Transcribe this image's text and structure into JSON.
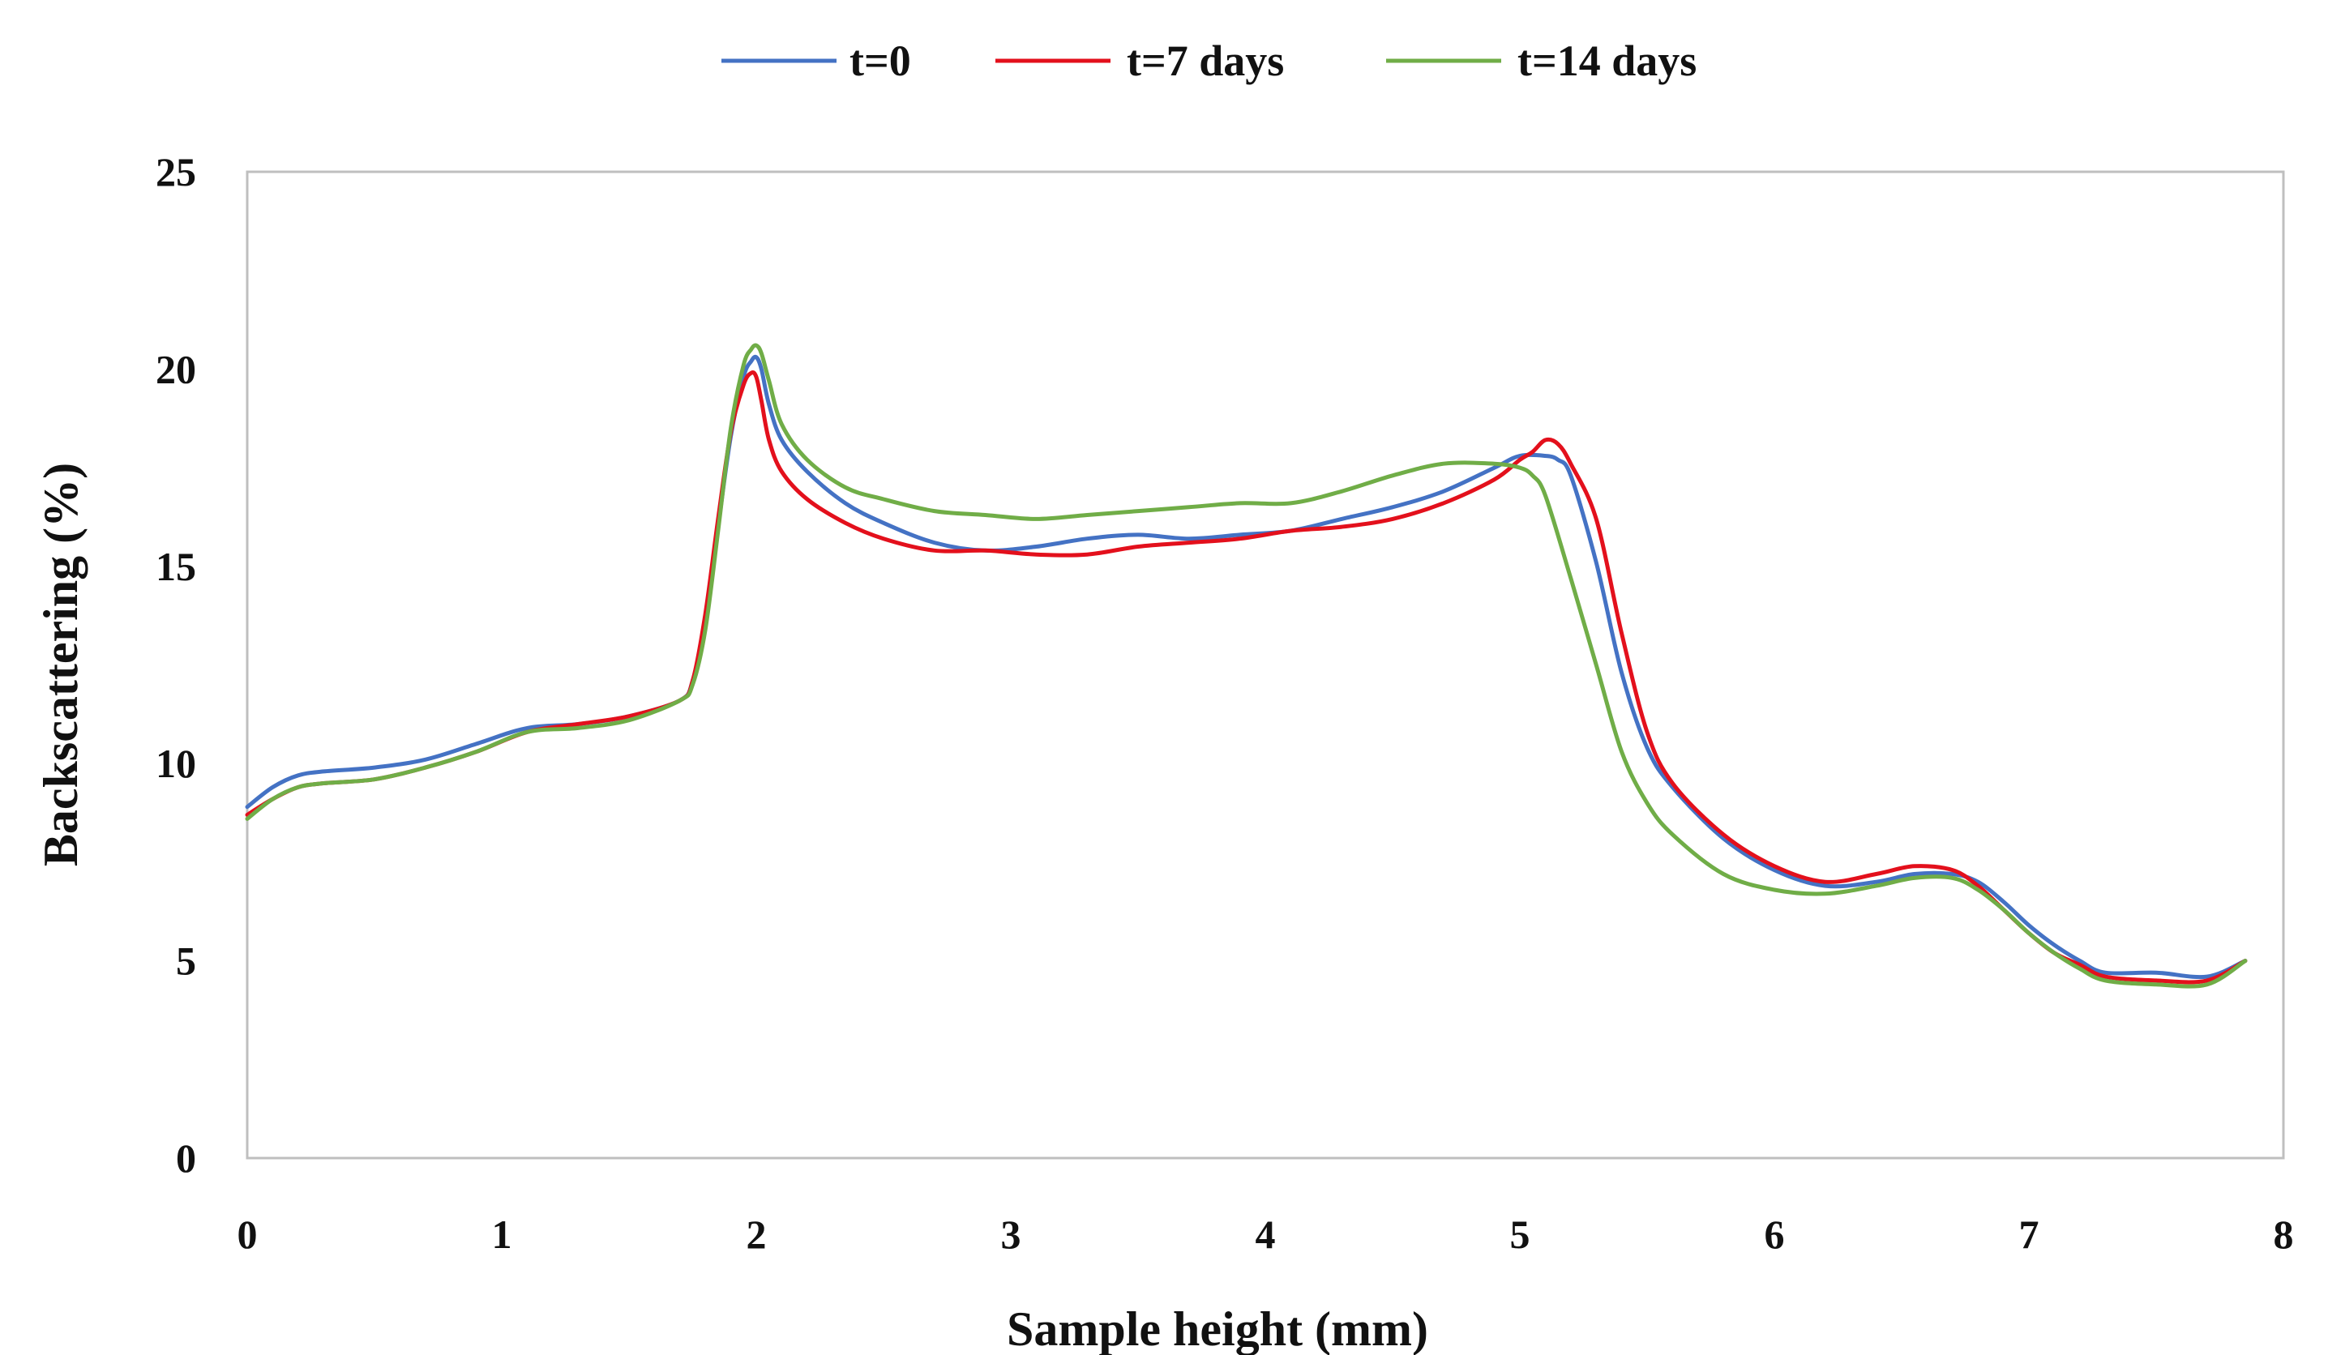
{
  "chart_data": {
    "type": "line",
    "title": "",
    "xlabel": "Sample height (mm)",
    "ylabel": "Backscattering (%)",
    "xlim": [
      0,
      8
    ],
    "ylim": [
      0,
      25
    ],
    "xticks": [
      "0",
      "1",
      "2",
      "3",
      "4",
      "5",
      "6",
      "7",
      "8"
    ],
    "yticks": [
      "0",
      "5",
      "10",
      "15",
      "20",
      "25"
    ],
    "grid": false,
    "legend_position": "top-center",
    "series": [
      {
        "name": "t=0",
        "color": "#4472C4",
        "x": [
          0,
          0.1,
          0.2,
          0.3,
          0.5,
          0.7,
          0.9,
          1.1,
          1.3,
          1.5,
          1.7,
          1.75,
          1.8,
          1.85,
          1.9,
          1.95,
          1.98,
          2.0,
          2.02,
          2.05,
          2.1,
          2.2,
          2.35,
          2.5,
          2.7,
          2.9,
          3.1,
          3.3,
          3.5,
          3.7,
          3.9,
          4.1,
          4.3,
          4.5,
          4.7,
          4.9,
          5.0,
          5.1,
          5.15,
          5.2,
          5.3,
          5.4,
          5.5,
          5.6,
          5.8,
          6.0,
          6.2,
          6.4,
          6.55,
          6.7,
          6.8,
          6.9,
          7.0,
          7.1,
          7.2,
          7.3,
          7.5,
          7.7,
          7.85
        ],
        "y": [
          8.9,
          9.4,
          9.7,
          9.8,
          9.9,
          10.1,
          10.5,
          10.9,
          11.0,
          11.2,
          11.6,
          12.1,
          13.6,
          16.0,
          18.3,
          19.8,
          20.2,
          20.3,
          20.0,
          19.1,
          18.2,
          17.4,
          16.6,
          16.1,
          15.6,
          15.4,
          15.5,
          15.7,
          15.8,
          15.7,
          15.8,
          15.9,
          16.2,
          16.5,
          16.9,
          17.5,
          17.8,
          17.8,
          17.7,
          17.3,
          15.1,
          12.3,
          10.4,
          9.4,
          8.1,
          7.3,
          6.9,
          7.0,
          7.2,
          7.2,
          7.0,
          6.5,
          5.9,
          5.4,
          5.0,
          4.7,
          4.7,
          4.6,
          5.0
        ]
      },
      {
        "name": "t=7 days",
        "color": "#E3101C",
        "x": [
          0,
          0.1,
          0.2,
          0.3,
          0.5,
          0.7,
          0.9,
          1.1,
          1.3,
          1.5,
          1.7,
          1.75,
          1.8,
          1.85,
          1.9,
          1.95,
          1.98,
          2.0,
          2.02,
          2.05,
          2.1,
          2.2,
          2.35,
          2.5,
          2.7,
          2.9,
          3.1,
          3.3,
          3.5,
          3.7,
          3.9,
          4.1,
          4.3,
          4.5,
          4.7,
          4.9,
          5.0,
          5.05,
          5.1,
          5.15,
          5.2,
          5.3,
          5.4,
          5.5,
          5.6,
          5.8,
          6.0,
          6.2,
          6.4,
          6.55,
          6.7,
          6.8,
          6.9,
          7.0,
          7.1,
          7.2,
          7.3,
          7.5,
          7.7,
          7.85
        ],
        "y": [
          8.7,
          9.1,
          9.4,
          9.5,
          9.6,
          9.9,
          10.3,
          10.8,
          11.0,
          11.2,
          11.6,
          12.1,
          13.8,
          16.2,
          18.4,
          19.6,
          19.9,
          19.8,
          19.2,
          18.2,
          17.4,
          16.7,
          16.1,
          15.7,
          15.4,
          15.4,
          15.3,
          15.3,
          15.5,
          15.6,
          15.7,
          15.9,
          16.0,
          16.2,
          16.6,
          17.2,
          17.7,
          17.9,
          18.2,
          18.1,
          17.6,
          16.2,
          13.3,
          10.8,
          9.5,
          8.2,
          7.4,
          7.0,
          7.2,
          7.4,
          7.3,
          6.9,
          6.3,
          5.7,
          5.2,
          4.9,
          4.6,
          4.5,
          4.5,
          5.0
        ]
      },
      {
        "name": "t=14 days",
        "color": "#70AD47",
        "x": [
          0,
          0.1,
          0.2,
          0.3,
          0.5,
          0.7,
          0.9,
          1.1,
          1.3,
          1.5,
          1.7,
          1.75,
          1.8,
          1.85,
          1.9,
          1.95,
          1.98,
          2.0,
          2.02,
          2.05,
          2.1,
          2.2,
          2.35,
          2.5,
          2.7,
          2.9,
          3.1,
          3.3,
          3.5,
          3.7,
          3.9,
          4.1,
          4.3,
          4.5,
          4.7,
          4.9,
          5.0,
          5.05,
          5.1,
          5.2,
          5.3,
          5.4,
          5.5,
          5.6,
          5.8,
          6.0,
          6.2,
          6.4,
          6.55,
          6.7,
          6.8,
          6.9,
          7.0,
          7.1,
          7.2,
          7.3,
          7.5,
          7.7,
          7.85
        ],
        "y": [
          8.6,
          9.1,
          9.4,
          9.5,
          9.6,
          9.9,
          10.3,
          10.8,
          10.9,
          11.1,
          11.6,
          12.0,
          13.4,
          15.9,
          18.5,
          20.1,
          20.5,
          20.6,
          20.4,
          19.7,
          18.6,
          17.7,
          17.0,
          16.7,
          16.4,
          16.3,
          16.2,
          16.3,
          16.4,
          16.5,
          16.6,
          16.6,
          16.9,
          17.3,
          17.6,
          17.6,
          17.5,
          17.3,
          16.8,
          14.7,
          12.5,
          10.3,
          9.0,
          8.2,
          7.2,
          6.8,
          6.7,
          6.9,
          7.1,
          7.1,
          6.8,
          6.3,
          5.7,
          5.2,
          4.8,
          4.5,
          4.4,
          4.4,
          5.0
        ]
      }
    ]
  }
}
